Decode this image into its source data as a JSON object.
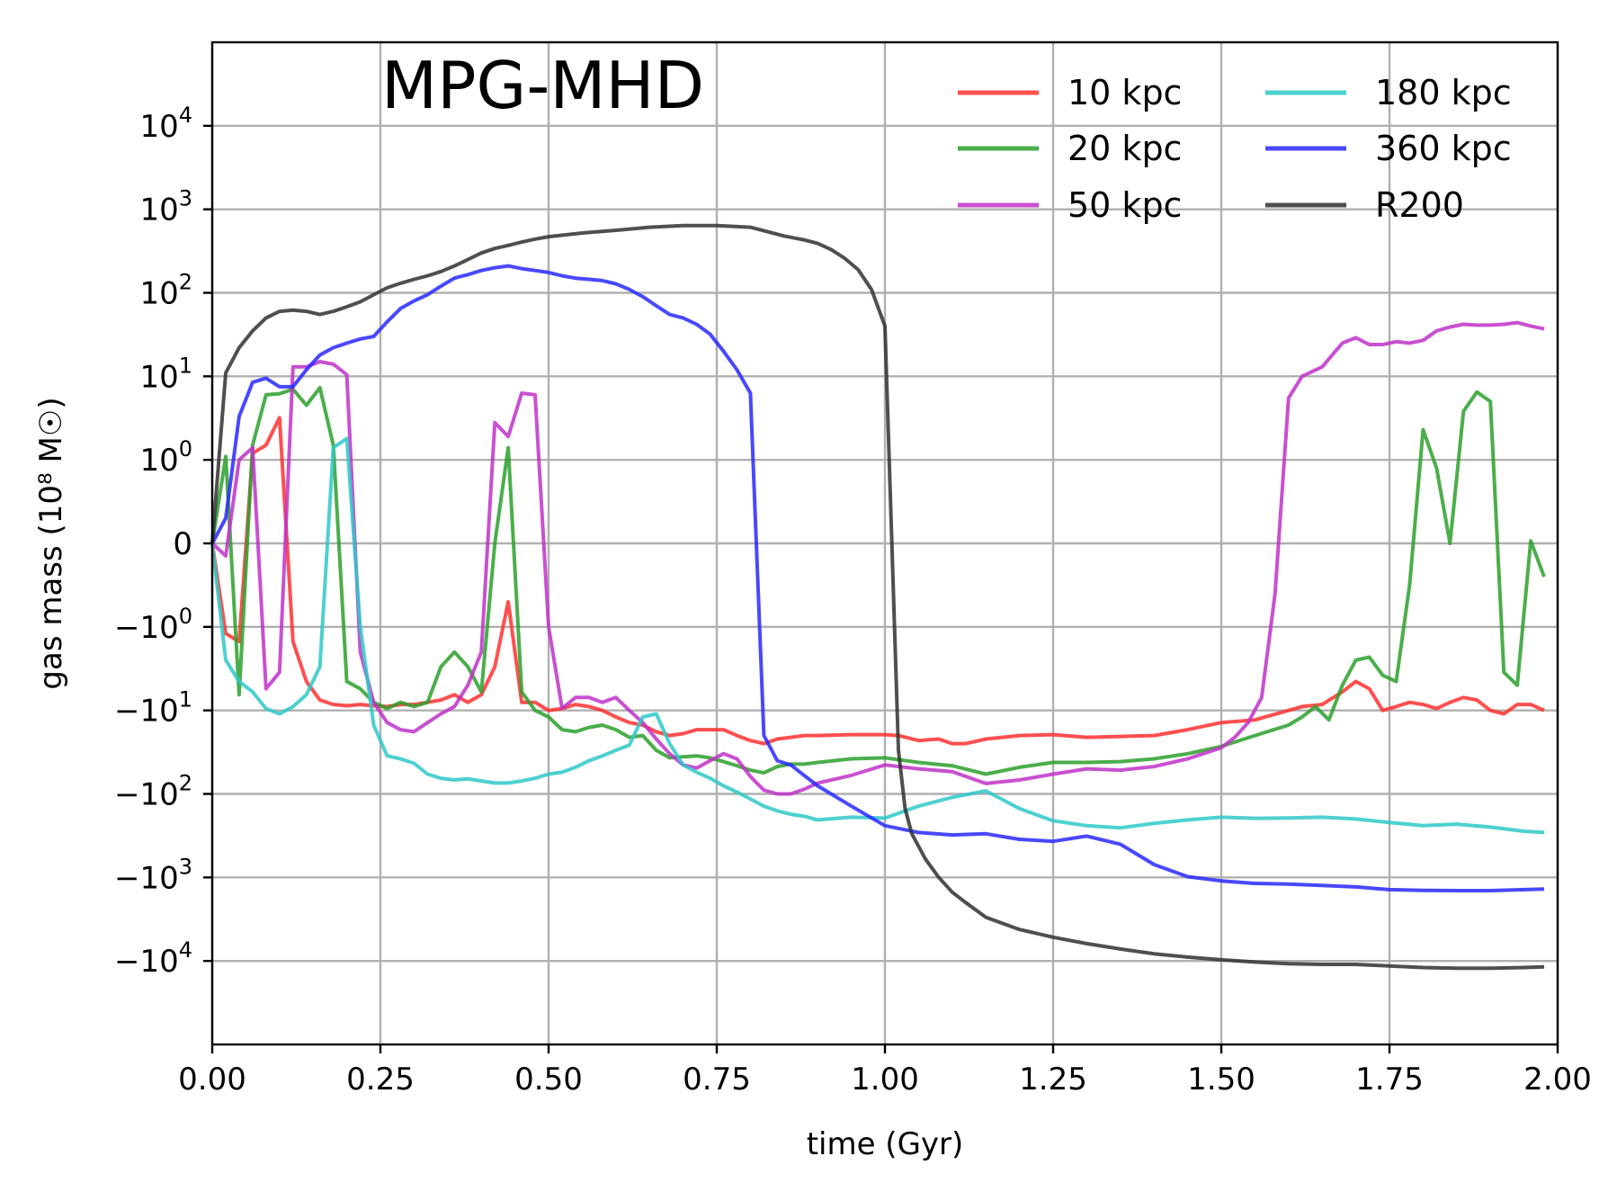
{
  "chart_data": {
    "type": "line",
    "title": "MPG-MHD",
    "xlabel": "time (Gyr)",
    "ylabel": "gas mass (10⁸ M☉)",
    "xlim": [
      0,
      2
    ],
    "yscale": "symlog",
    "grid": true,
    "legend_position": "top-right",
    "x_ticks": [
      0,
      0.25,
      0.5,
      0.75,
      1.0,
      1.25,
      1.5,
      1.75,
      2.0
    ],
    "x_tick_labels": [
      "0.00",
      "0.25",
      "0.50",
      "0.75",
      "1.00",
      "1.25",
      "1.50",
      "1.75",
      "2.00"
    ],
    "y_ticks": [
      {
        "base": "10",
        "exp": "4",
        "value": 10000
      },
      {
        "base": "10",
        "exp": "3",
        "value": 1000
      },
      {
        "base": "10",
        "exp": "2",
        "value": 100
      },
      {
        "base": "10",
        "exp": "1",
        "value": 10
      },
      {
        "base": "10",
        "exp": "0",
        "value": 1
      },
      {
        "base": "0",
        "exp": "",
        "value": 0
      },
      {
        "base": "−10",
        "exp": "0",
        "value": -1
      },
      {
        "base": "−10",
        "exp": "1",
        "value": -10
      },
      {
        "base": "−10",
        "exp": "2",
        "value": -100
      },
      {
        "base": "−10",
        "exp": "3",
        "value": -1000
      },
      {
        "base": "−10",
        "exp": "4",
        "value": -10000
      }
    ],
    "series": [
      {
        "name": "10 kpc",
        "color": "#ff3030",
        "x": [
          0,
          0.02,
          0.04,
          0.06,
          0.08,
          0.1,
          0.12,
          0.14,
          0.16,
          0.18,
          0.2,
          0.22,
          0.24,
          0.26,
          0.28,
          0.3,
          0.32,
          0.34,
          0.36,
          0.38,
          0.4,
          0.42,
          0.44,
          0.46,
          0.48,
          0.5,
          0.52,
          0.54,
          0.56,
          0.58,
          0.6,
          0.62,
          0.64,
          0.66,
          0.68,
          0.7,
          0.72,
          0.74,
          0.76,
          0.78,
          0.8,
          0.82,
          0.84,
          0.86,
          0.88,
          0.9,
          0.95,
          1.0,
          1.02,
          1.05,
          1.08,
          1.1,
          1.12,
          1.15,
          1.2,
          1.25,
          1.3,
          1.35,
          1.4,
          1.45,
          1.5,
          1.55,
          1.6,
          1.62,
          1.65,
          1.68,
          1.7,
          1.72,
          1.74,
          1.76,
          1.78,
          1.8,
          1.82,
          1.84,
          1.86,
          1.88,
          1.9,
          1.92,
          1.94,
          1.96,
          1.98
        ],
        "y": [
          0,
          -1.2,
          -1.5,
          1.2,
          1.5,
          3.2,
          -1.5,
          -4.5,
          -7.5,
          -8.5,
          -8.8,
          -8.5,
          -8.8,
          -9,
          -8.5,
          -8.5,
          -8,
          -7.5,
          -6.5,
          -8,
          -6.5,
          -3,
          -0.7,
          -8,
          -8,
          -10,
          -9.5,
          -8.5,
          -9,
          -10,
          -12,
          -14,
          -15,
          -18,
          -20,
          -19,
          -17,
          -17,
          -17,
          -20,
          -23,
          -25,
          -22,
          -21,
          -20,
          -20,
          -19.5,
          -19.5,
          -20,
          -23,
          -22,
          -25,
          -25,
          -22,
          -20,
          -19.5,
          -21,
          -20.5,
          -20,
          -17,
          -14,
          -13,
          -10,
          -9,
          -8.5,
          -6,
          -4.5,
          -5.5,
          -10,
          -9,
          -8,
          -8.5,
          -9.5,
          -8,
          -7,
          -7.5,
          -10,
          -11,
          -8.5,
          -8.5,
          -10
        ]
      },
      {
        "name": "20 kpc",
        "color": "#2ca02c",
        "x": [
          0,
          0.02,
          0.04,
          0.06,
          0.08,
          0.1,
          0.12,
          0.14,
          0.16,
          0.18,
          0.2,
          0.22,
          0.24,
          0.26,
          0.28,
          0.3,
          0.32,
          0.34,
          0.36,
          0.38,
          0.4,
          0.42,
          0.44,
          0.46,
          0.48,
          0.5,
          0.52,
          0.54,
          0.56,
          0.58,
          0.6,
          0.62,
          0.64,
          0.66,
          0.68,
          0.7,
          0.72,
          0.74,
          0.76,
          0.78,
          0.8,
          0.82,
          0.84,
          0.86,
          0.88,
          0.9,
          0.95,
          1.0,
          1.05,
          1.1,
          1.15,
          1.2,
          1.25,
          1.3,
          1.35,
          1.4,
          1.45,
          1.5,
          1.55,
          1.6,
          1.62,
          1.64,
          1.66,
          1.68,
          1.7,
          1.72,
          1.74,
          1.76,
          1.78,
          1.8,
          1.82,
          1.84,
          1.86,
          1.88,
          1.9,
          1.92,
          1.94,
          1.96,
          1.98
        ],
        "y": [
          0,
          1.1,
          -6.5,
          1.5,
          6,
          6.2,
          7,
          4.5,
          7.3,
          1.5,
          -4.5,
          -5.5,
          -8,
          -9.5,
          -8,
          -9,
          -8,
          -3,
          -2,
          -3,
          -6,
          0,
          1.4,
          -6,
          -10,
          -12,
          -17,
          -18,
          -16,
          -15,
          -17,
          -21,
          -20,
          -30,
          -37,
          -36,
          -35,
          -37,
          -41,
          -46,
          -52,
          -56,
          -47,
          -44,
          -44,
          -42,
          -38,
          -37,
          -42,
          -46,
          -58,
          -48,
          -42,
          -42,
          -41,
          -38,
          -33,
          -27,
          -20,
          -15,
          -12,
          -9,
          -13,
          -5,
          -2.5,
          -2.3,
          -3.8,
          -4.5,
          -0.5,
          2.3,
          0.9,
          0,
          3.8,
          6.5,
          5,
          -3.5,
          -5,
          0.03,
          -0.4
        ]
      },
      {
        "name": "50 kpc",
        "color": "#c031c8",
        "x": [
          0,
          0.02,
          0.04,
          0.06,
          0.08,
          0.1,
          0.12,
          0.14,
          0.16,
          0.18,
          0.2,
          0.22,
          0.24,
          0.26,
          0.28,
          0.3,
          0.32,
          0.34,
          0.36,
          0.38,
          0.4,
          0.42,
          0.44,
          0.46,
          0.48,
          0.5,
          0.52,
          0.54,
          0.56,
          0.58,
          0.6,
          0.62,
          0.64,
          0.66,
          0.68,
          0.7,
          0.72,
          0.74,
          0.76,
          0.78,
          0.8,
          0.82,
          0.84,
          0.86,
          0.88,
          0.9,
          0.95,
          1.0,
          1.05,
          1.1,
          1.15,
          1.2,
          1.25,
          1.3,
          1.35,
          1.4,
          1.45,
          1.5,
          1.52,
          1.54,
          1.56,
          1.58,
          1.6,
          1.62,
          1.65,
          1.68,
          1.7,
          1.72,
          1.74,
          1.76,
          1.78,
          1.8,
          1.82,
          1.84,
          1.86,
          1.88,
          1.9,
          1.92,
          1.94,
          1.96,
          1.98
        ],
        "y": [
          0,
          -0.15,
          1,
          1.4,
          -5.5,
          -3.5,
          13,
          13,
          15,
          14,
          10.5,
          -2,
          -8,
          -14,
          -17,
          -18,
          -14,
          -11,
          -9,
          -5,
          -2,
          2.8,
          1.9,
          6.3,
          6,
          -1,
          -9.5,
          -7,
          -7,
          -8,
          -7,
          -10,
          -14,
          -22,
          -33,
          -45,
          -49,
          -40,
          -33,
          -38,
          -62,
          -90,
          -100,
          -100,
          -88,
          -74,
          -60,
          -45,
          -50,
          -54,
          -75,
          -68,
          -58,
          -50,
          -52,
          -47,
          -38,
          -28,
          -21,
          -14,
          -7,
          -0.6,
          5.5,
          10,
          13,
          25,
          29,
          24,
          24,
          26,
          25,
          27,
          35,
          39,
          42,
          41,
          41,
          42,
          44,
          40,
          37
        ]
      },
      {
        "name": "180 kpc",
        "color": "#2ec8c8",
        "x": [
          0,
          0.02,
          0.04,
          0.06,
          0.08,
          0.1,
          0.12,
          0.14,
          0.16,
          0.18,
          0.2,
          0.22,
          0.24,
          0.26,
          0.28,
          0.3,
          0.32,
          0.34,
          0.36,
          0.38,
          0.4,
          0.42,
          0.44,
          0.46,
          0.48,
          0.5,
          0.52,
          0.54,
          0.56,
          0.58,
          0.6,
          0.62,
          0.64,
          0.66,
          0.68,
          0.7,
          0.72,
          0.74,
          0.76,
          0.78,
          0.8,
          0.82,
          0.84,
          0.86,
          0.88,
          0.9,
          0.95,
          1.0,
          1.05,
          1.1,
          1.15,
          1.2,
          1.25,
          1.3,
          1.35,
          1.4,
          1.45,
          1.5,
          1.55,
          1.6,
          1.65,
          1.7,
          1.75,
          1.8,
          1.85,
          1.9,
          1.95,
          1.98
        ],
        "y": [
          0,
          -2.5,
          -4.5,
          -6,
          -9.5,
          -11,
          -9,
          -6.5,
          -3,
          1.4,
          1.8,
          -1,
          -15,
          -35,
          -38,
          -43,
          -58,
          -65,
          -68,
          -66,
          -70,
          -74,
          -74,
          -70,
          -65,
          -58,
          -55,
          -48,
          -40,
          -35,
          -30,
          -26,
          -12,
          -11,
          -25,
          -45,
          -55,
          -65,
          -80,
          -95,
          -115,
          -140,
          -160,
          -175,
          -185,
          -205,
          -190,
          -195,
          -140,
          -110,
          -92,
          -150,
          -210,
          -240,
          -255,
          -225,
          -205,
          -190,
          -196,
          -194,
          -190,
          -200,
          -220,
          -240,
          -230,
          -250,
          -280,
          -290
        ]
      },
      {
        "name": "360 kpc",
        "color": "#2828ff",
        "x": [
          0,
          0.02,
          0.04,
          0.06,
          0.08,
          0.1,
          0.12,
          0.14,
          0.16,
          0.18,
          0.2,
          0.22,
          0.24,
          0.26,
          0.28,
          0.3,
          0.32,
          0.34,
          0.36,
          0.38,
          0.4,
          0.42,
          0.44,
          0.46,
          0.48,
          0.5,
          0.52,
          0.54,
          0.56,
          0.58,
          0.6,
          0.62,
          0.64,
          0.66,
          0.68,
          0.7,
          0.72,
          0.74,
          0.76,
          0.78,
          0.8,
          0.82,
          0.84,
          0.86,
          0.88,
          0.9,
          0.95,
          1.0,
          1.05,
          1.1,
          1.15,
          1.2,
          1.25,
          1.3,
          1.35,
          1.4,
          1.45,
          1.5,
          1.55,
          1.6,
          1.65,
          1.7,
          1.75,
          1.8,
          1.85,
          1.9,
          1.95,
          1.98
        ],
        "y": [
          0,
          0.3,
          3.3,
          8.5,
          9.5,
          7.5,
          7.5,
          12,
          18,
          22,
          25,
          28,
          30,
          45,
          65,
          80,
          95,
          120,
          150,
          165,
          185,
          200,
          210,
          195,
          185,
          175,
          160,
          150,
          145,
          140,
          128,
          110,
          90,
          70,
          55,
          50,
          42,
          32,
          20,
          12,
          6.3,
          -20,
          -40,
          -45,
          -60,
          -80,
          -140,
          -240,
          -290,
          -310,
          -300,
          -350,
          -370,
          -320,
          -400,
          -700,
          -980,
          -1100,
          -1180,
          -1200,
          -1250,
          -1300,
          -1400,
          -1430,
          -1440,
          -1440,
          -1400,
          -1380
        ]
      },
      {
        "name": "R200",
        "color": "#303030",
        "x": [
          0,
          0.02,
          0.04,
          0.06,
          0.08,
          0.1,
          0.12,
          0.14,
          0.16,
          0.18,
          0.2,
          0.22,
          0.24,
          0.26,
          0.28,
          0.3,
          0.32,
          0.34,
          0.36,
          0.38,
          0.4,
          0.42,
          0.44,
          0.46,
          0.48,
          0.5,
          0.55,
          0.6,
          0.65,
          0.7,
          0.75,
          0.8,
          0.85,
          0.88,
          0.9,
          0.92,
          0.94,
          0.96,
          0.98,
          1.0,
          1.02,
          1.03,
          1.04,
          1.06,
          1.08,
          1.1,
          1.12,
          1.15,
          1.2,
          1.25,
          1.3,
          1.35,
          1.4,
          1.45,
          1.5,
          1.55,
          1.6,
          1.65,
          1.7,
          1.75,
          1.8,
          1.85,
          1.9,
          1.95,
          1.98
        ],
        "y": [
          0,
          11,
          22,
          35,
          50,
          60,
          62,
          60,
          55,
          60,
          68,
          78,
          95,
          115,
          130,
          145,
          160,
          180,
          210,
          250,
          300,
          340,
          370,
          405,
          440,
          470,
          520,
          560,
          610,
          640,
          640,
          610,
          480,
          430,
          390,
          330,
          260,
          190,
          110,
          40,
          -30,
          -150,
          -300,
          -600,
          -1000,
          -1500,
          -2000,
          -3000,
          -4200,
          -5200,
          -6200,
          -7200,
          -8200,
          -9000,
          -9700,
          -10300,
          -10800,
          -11000,
          -11000,
          -11500,
          -12000,
          -12200,
          -12200,
          -12000,
          -11800
        ]
      }
    ]
  }
}
